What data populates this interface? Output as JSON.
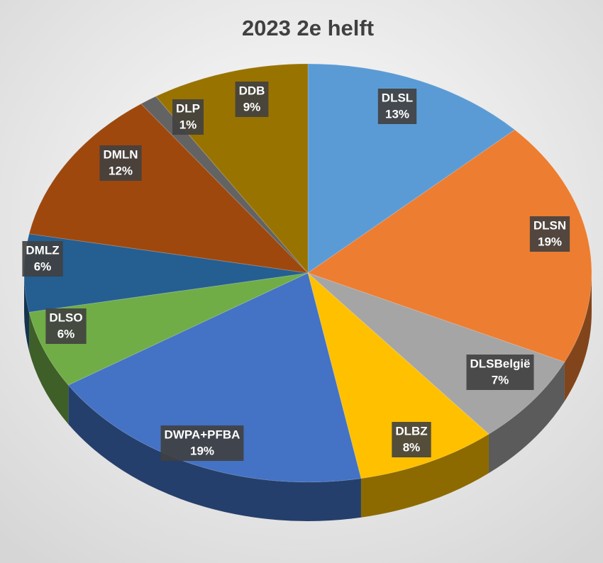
{
  "chart_data": {
    "type": "pie",
    "title": "2023 2e helft",
    "categories": [
      "DLSL",
      "DLSN",
      "DLSBelgië",
      "DLBZ",
      "DWPA+PFBA",
      "DLSO",
      "DMLZ",
      "DMLN",
      "DLP",
      "DDB"
    ],
    "values": [
      13,
      19,
      7,
      8,
      19,
      6,
      6,
      12,
      1,
      9
    ],
    "value_labels": [
      "13%",
      "19%",
      "7%",
      "8%",
      "19%",
      "6%",
      "6%",
      "12%",
      "1%",
      "9%"
    ],
    "colors": [
      "#5b9bd5",
      "#ed7d31",
      "#a5a5a5",
      "#ffc000",
      "#4472c4",
      "#70ad47",
      "#255e91",
      "#9e480e",
      "#636363",
      "#997300"
    ]
  }
}
